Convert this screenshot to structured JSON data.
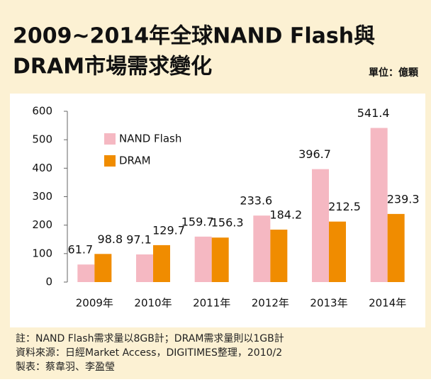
{
  "chart_data": {
    "type": "bar",
    "title": [
      "2009~2014年全球NAND Flash與",
      "DRAM市場需求變化"
    ],
    "unit": "單位：億顆",
    "categories": [
      "2009年",
      "2010年",
      "2011年",
      "2012年",
      "2013年",
      "2014年"
    ],
    "series": [
      {
        "name": "NAND Flash",
        "color": "#f5b8c2",
        "values": [
          61.7,
          97.1,
          159.7,
          233.6,
          396.7,
          541.4
        ]
      },
      {
        "name": "DRAM",
        "color": "#f08c00",
        "values": [
          98.8,
          129.7,
          156.3,
          184.2,
          212.5,
          239.3
        ]
      }
    ],
    "ylim": [
      0,
      600
    ],
    "yticks": [
      0,
      100,
      200,
      300,
      400,
      500,
      600
    ],
    "grid": false,
    "legend": "upper left",
    "notes": [
      "註：NAND Flash需求量以8GB計；DRAM需求量則以1GB計",
      "資料來源：日經Market Access，DIGITIMES整理，2010/2",
      "製表：蔡韋羽、李盈瑩"
    ]
  }
}
